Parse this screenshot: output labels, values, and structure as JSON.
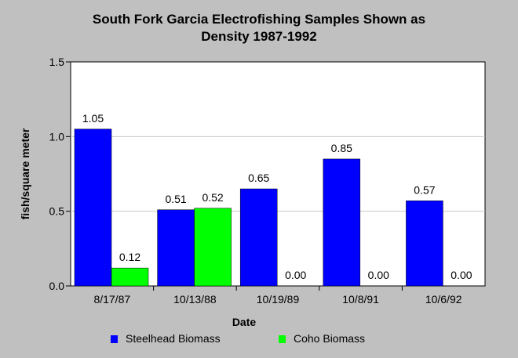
{
  "chart_data": {
    "type": "bar",
    "title_line1": "South Fork Garcia Electrofishing Samples Shown as",
    "title_line2": "Density 1987-1992",
    "xlabel": "Date",
    "ylabel": "fish/square meter",
    "ylim": [
      0,
      1.5
    ],
    "yticks": [
      "0.0",
      "0.5",
      "1.0",
      "1.5"
    ],
    "categories": [
      "8/17/87",
      "10/13/88",
      "10/19/89",
      "10/8/91",
      "10/6/92"
    ],
    "series": [
      {
        "name": "Steelhead Biomass",
        "color": "#0000ff",
        "values": [
          1.05,
          0.51,
          0.65,
          0.85,
          0.57
        ],
        "labels": [
          "1.05",
          "0.51",
          "0.65",
          "0.85",
          "0.57"
        ]
      },
      {
        "name": "Coho Biomass",
        "color": "#00ff00",
        "values": [
          0.12,
          0.52,
          0.0,
          0.0,
          0.0
        ],
        "labels": [
          "0.12",
          "0.52",
          "0.00",
          "0.00",
          "0.00"
        ]
      }
    ],
    "grid": true,
    "legend_position": "bottom"
  }
}
